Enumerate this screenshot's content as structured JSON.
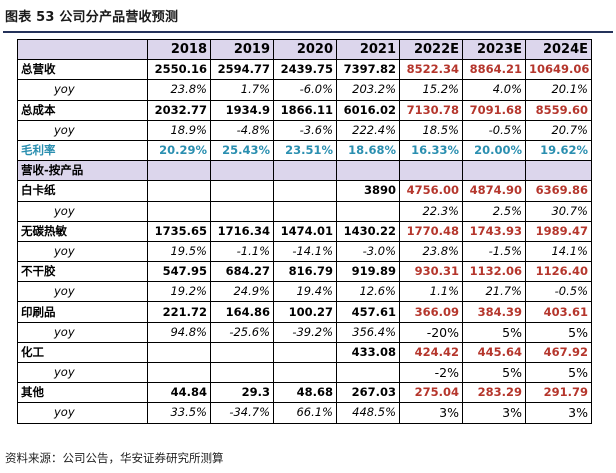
{
  "caption": "图表 53 公司分产品营收预测",
  "columns": [
    "",
    "2018",
    "2019",
    "2020",
    "2021",
    "2022E",
    "2023E",
    "2024E"
  ],
  "rows": [
    {
      "type": "main",
      "label": "总营收",
      "values": [
        "2550.16",
        "2594.77",
        "2439.75",
        "7397.82",
        "8522.34",
        "8864.21",
        "10649.06"
      ]
    },
    {
      "type": "yoy",
      "label": "yoy",
      "values": [
        "23.8%",
        "1.7%",
        "-6.0%",
        "203.2%",
        "15.2%",
        "4.0%",
        "20.1%"
      ]
    },
    {
      "type": "main",
      "label": "总成本",
      "values": [
        "2032.77",
        "1934.9",
        "1866.11",
        "6016.02",
        "7130.78",
        "7091.68",
        "8559.60"
      ]
    },
    {
      "type": "yoy",
      "label": "yoy",
      "values": [
        "18.9%",
        "-4.8%",
        "-3.6%",
        "222.4%",
        "18.5%",
        "-0.5%",
        "20.7%"
      ]
    },
    {
      "type": "margin",
      "label": "毛利率",
      "values": [
        "20.29%",
        "25.43%",
        "23.51%",
        "18.68%",
        "16.33%",
        "20.00%",
        "19.62%"
      ]
    },
    {
      "type": "section",
      "label": "营收-按产品",
      "values": [
        "",
        "",
        "",
        "",
        "",
        "",
        ""
      ]
    },
    {
      "type": "main",
      "label": "白卡纸",
      "values": [
        "",
        "",
        "",
        "3890",
        "4756.00",
        "4874.90",
        "6369.86"
      ]
    },
    {
      "type": "yoy",
      "label": "yoy",
      "values": [
        "",
        "",
        "",
        "",
        "22.3%",
        "2.5%",
        "30.7%"
      ]
    },
    {
      "type": "main",
      "label": "无碳热敏",
      "values": [
        "1735.65",
        "1716.34",
        "1474.01",
        "1430.22",
        "1770.48",
        "1743.93",
        "1989.47"
      ]
    },
    {
      "type": "yoy",
      "label": "yoy",
      "values": [
        "19.5%",
        "-1.1%",
        "-14.1%",
        "-3.0%",
        "23.8%",
        "-1.5%",
        "14.1%"
      ]
    },
    {
      "type": "main",
      "label": "不干胶",
      "values": [
        "547.95",
        "684.27",
        "816.79",
        "919.89",
        "930.31",
        "1132.06",
        "1126.40"
      ]
    },
    {
      "type": "yoy",
      "label": "yoy",
      "values": [
        "19.2%",
        "24.9%",
        "19.4%",
        "12.6%",
        "1.1%",
        "21.7%",
        "-0.5%"
      ]
    },
    {
      "type": "main",
      "label": "印刷品",
      "values": [
        "221.72",
        "164.86",
        "100.27",
        "457.61",
        "366.09",
        "384.39",
        "403.61"
      ]
    },
    {
      "type": "yoy",
      "label": "yoy",
      "values": [
        "94.8%",
        "-25.6%",
        "-39.2%",
        "356.4%",
        "-20%",
        "5%",
        "5%"
      ]
    },
    {
      "type": "main",
      "label": "化工",
      "values": [
        "",
        "",
        "",
        "433.08",
        "424.42",
        "445.64",
        "467.92"
      ]
    },
    {
      "type": "yoy",
      "label": "yoy",
      "values": [
        "",
        "",
        "",
        "",
        "-2%",
        "5%",
        "5%"
      ]
    },
    {
      "type": "main",
      "label": "其他",
      "values": [
        "44.84",
        "29.3",
        "48.68",
        "267.03",
        "275.04",
        "283.29",
        "291.79"
      ]
    },
    {
      "type": "yoy",
      "label": "yoy",
      "values": [
        "33.5%",
        "-34.7%",
        "66.1%",
        "448.5%",
        "3%",
        "3%",
        "3%"
      ]
    }
  ],
  "source": "资料来源：公司公告，华安证券研究所测算"
}
